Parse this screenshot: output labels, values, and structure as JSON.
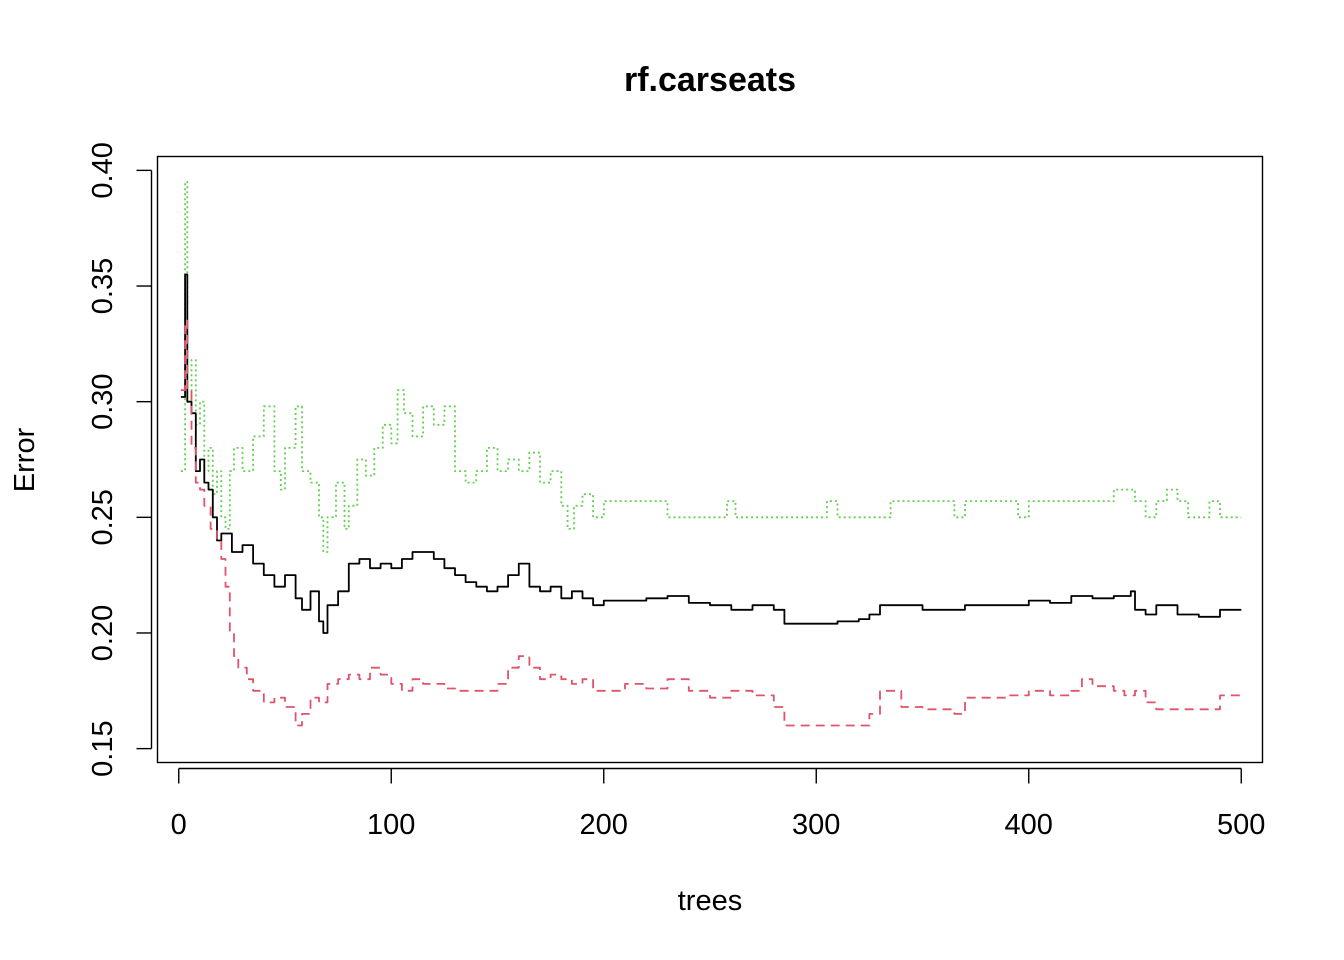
{
  "chart_data": {
    "type": "line",
    "title": "rf.carseats",
    "xlabel": "trees",
    "ylabel": "Error",
    "xlim": [
      -10,
      510
    ],
    "ylim": [
      0.144,
      0.406
    ],
    "x_ticks": [
      0,
      100,
      200,
      300,
      400,
      500
    ],
    "y_ticks": [
      0.15,
      0.2,
      0.25,
      0.3,
      0.35,
      0.4
    ],
    "x_tick_labels": [
      "0",
      "100",
      "200",
      "300",
      "400",
      "500"
    ],
    "y_tick_labels": [
      "0.15",
      "0.20",
      "0.25",
      "0.30",
      "0.35",
      "0.40"
    ],
    "legend": "none",
    "grid": false,
    "series": [
      {
        "line_style": "dotted",
        "color": "#61D04F",
        "points": [
          [
            1,
            0.27
          ],
          [
            3,
            0.395
          ],
          [
            4,
            0.3
          ],
          [
            6,
            0.318
          ],
          [
            8,
            0.29
          ],
          [
            10,
            0.3
          ],
          [
            12,
            0.27
          ],
          [
            14,
            0.28
          ],
          [
            16,
            0.26
          ],
          [
            18,
            0.27
          ],
          [
            20,
            0.25
          ],
          [
            22,
            0.245
          ],
          [
            24,
            0.27
          ],
          [
            26,
            0.28
          ],
          [
            30,
            0.27
          ],
          [
            35,
            0.285
          ],
          [
            40,
            0.298
          ],
          [
            45,
            0.27
          ],
          [
            48,
            0.262
          ],
          [
            50,
            0.28
          ],
          [
            55,
            0.298
          ],
          [
            58,
            0.27
          ],
          [
            62,
            0.265
          ],
          [
            66,
            0.25
          ],
          [
            68,
            0.235
          ],
          [
            70,
            0.25
          ],
          [
            74,
            0.265
          ],
          [
            78,
            0.245
          ],
          [
            80,
            0.255
          ],
          [
            84,
            0.275
          ],
          [
            88,
            0.268
          ],
          [
            92,
            0.28
          ],
          [
            96,
            0.29
          ],
          [
            100,
            0.282
          ],
          [
            103,
            0.305
          ],
          [
            106,
            0.295
          ],
          [
            110,
            0.285
          ],
          [
            115,
            0.298
          ],
          [
            120,
            0.29
          ],
          [
            125,
            0.298
          ],
          [
            130,
            0.27
          ],
          [
            135,
            0.265
          ],
          [
            140,
            0.27
          ],
          [
            145,
            0.28
          ],
          [
            150,
            0.27
          ],
          [
            155,
            0.275
          ],
          [
            160,
            0.27
          ],
          [
            165,
            0.278
          ],
          [
            170,
            0.265
          ],
          [
            175,
            0.27
          ],
          [
            180,
            0.255
          ],
          [
            183,
            0.245
          ],
          [
            186,
            0.255
          ],
          [
            190,
            0.26
          ],
          [
            195,
            0.25
          ],
          [
            200,
            0.257
          ],
          [
            220,
            0.257
          ],
          [
            230,
            0.25
          ],
          [
            255,
            0.25
          ],
          [
            258,
            0.257
          ],
          [
            262,
            0.25
          ],
          [
            300,
            0.25
          ],
          [
            305,
            0.257
          ],
          [
            310,
            0.25
          ],
          [
            330,
            0.25
          ],
          [
            335,
            0.257
          ],
          [
            340,
            0.257
          ],
          [
            360,
            0.257
          ],
          [
            365,
            0.25
          ],
          [
            370,
            0.257
          ],
          [
            390,
            0.257
          ],
          [
            395,
            0.25
          ],
          [
            400,
            0.257
          ],
          [
            435,
            0.257
          ],
          [
            440,
            0.262
          ],
          [
            445,
            0.262
          ],
          [
            450,
            0.257
          ],
          [
            455,
            0.25
          ],
          [
            460,
            0.257
          ],
          [
            465,
            0.262
          ],
          [
            470,
            0.257
          ],
          [
            475,
            0.25
          ],
          [
            480,
            0.25
          ],
          [
            485,
            0.257
          ],
          [
            490,
            0.25
          ],
          [
            500,
            0.25
          ]
        ]
      },
      {
        "line_style": "solid",
        "color": "#000000",
        "points": [
          [
            1,
            0.302
          ],
          [
            3,
            0.355
          ],
          [
            4,
            0.3
          ],
          [
            6,
            0.295
          ],
          [
            8,
            0.27
          ],
          [
            10,
            0.275
          ],
          [
            12,
            0.265
          ],
          [
            14,
            0.262
          ],
          [
            16,
            0.25
          ],
          [
            18,
            0.24
          ],
          [
            20,
            0.243
          ],
          [
            25,
            0.235
          ],
          [
            30,
            0.238
          ],
          [
            35,
            0.23
          ],
          [
            40,
            0.225
          ],
          [
            45,
            0.22
          ],
          [
            50,
            0.225
          ],
          [
            55,
            0.215
          ],
          [
            58,
            0.21
          ],
          [
            62,
            0.218
          ],
          [
            66,
            0.205
          ],
          [
            68,
            0.2
          ],
          [
            70,
            0.212
          ],
          [
            75,
            0.218
          ],
          [
            80,
            0.23
          ],
          [
            85,
            0.232
          ],
          [
            90,
            0.228
          ],
          [
            95,
            0.23
          ],
          [
            100,
            0.228
          ],
          [
            105,
            0.232
          ],
          [
            110,
            0.235
          ],
          [
            115,
            0.235
          ],
          [
            120,
            0.232
          ],
          [
            125,
            0.228
          ],
          [
            130,
            0.225
          ],
          [
            135,
            0.222
          ],
          [
            140,
            0.22
          ],
          [
            145,
            0.218
          ],
          [
            150,
            0.22
          ],
          [
            155,
            0.225
          ],
          [
            160,
            0.23
          ],
          [
            165,
            0.22
          ],
          [
            170,
            0.218
          ],
          [
            175,
            0.22
          ],
          [
            180,
            0.215
          ],
          [
            185,
            0.218
          ],
          [
            190,
            0.215
          ],
          [
            195,
            0.212
          ],
          [
            200,
            0.214
          ],
          [
            220,
            0.215
          ],
          [
            230,
            0.216
          ],
          [
            240,
            0.213
          ],
          [
            250,
            0.212
          ],
          [
            260,
            0.21
          ],
          [
            270,
            0.212
          ],
          [
            280,
            0.21
          ],
          [
            285,
            0.204
          ],
          [
            300,
            0.204
          ],
          [
            310,
            0.205
          ],
          [
            320,
            0.206
          ],
          [
            325,
            0.208
          ],
          [
            330,
            0.212
          ],
          [
            340,
            0.212
          ],
          [
            350,
            0.21
          ],
          [
            360,
            0.21
          ],
          [
            370,
            0.212
          ],
          [
            380,
            0.212
          ],
          [
            390,
            0.212
          ],
          [
            400,
            0.214
          ],
          [
            410,
            0.213
          ],
          [
            420,
            0.216
          ],
          [
            430,
            0.215
          ],
          [
            440,
            0.216
          ],
          [
            448,
            0.218
          ],
          [
            450,
            0.21
          ],
          [
            455,
            0.208
          ],
          [
            460,
            0.212
          ],
          [
            470,
            0.208
          ],
          [
            480,
            0.207
          ],
          [
            490,
            0.21
          ],
          [
            500,
            0.21
          ]
        ]
      },
      {
        "line_style": "dashed",
        "color": "#DF536B",
        "points": [
          [
            1,
            0.305
          ],
          [
            3,
            0.335
          ],
          [
            4,
            0.305
          ],
          [
            6,
            0.28
          ],
          [
            8,
            0.265
          ],
          [
            10,
            0.262
          ],
          [
            12,
            0.255
          ],
          [
            15,
            0.245
          ],
          [
            18,
            0.24
          ],
          [
            20,
            0.232
          ],
          [
            22,
            0.22
          ],
          [
            24,
            0.2
          ],
          [
            26,
            0.19
          ],
          [
            28,
            0.185
          ],
          [
            32,
            0.18
          ],
          [
            35,
            0.175
          ],
          [
            40,
            0.17
          ],
          [
            45,
            0.172
          ],
          [
            50,
            0.168
          ],
          [
            55,
            0.16
          ],
          [
            58,
            0.165
          ],
          [
            62,
            0.172
          ],
          [
            66,
            0.17
          ],
          [
            70,
            0.178
          ],
          [
            75,
            0.18
          ],
          [
            80,
            0.182
          ],
          [
            85,
            0.18
          ],
          [
            90,
            0.185
          ],
          [
            95,
            0.182
          ],
          [
            100,
            0.178
          ],
          [
            105,
            0.175
          ],
          [
            110,
            0.18
          ],
          [
            115,
            0.178
          ],
          [
            120,
            0.178
          ],
          [
            125,
            0.176
          ],
          [
            130,
            0.175
          ],
          [
            140,
            0.175
          ],
          [
            150,
            0.178
          ],
          [
            155,
            0.185
          ],
          [
            160,
            0.19
          ],
          [
            165,
            0.185
          ],
          [
            170,
            0.18
          ],
          [
            175,
            0.182
          ],
          [
            180,
            0.18
          ],
          [
            185,
            0.178
          ],
          [
            190,
            0.18
          ],
          [
            195,
            0.175
          ],
          [
            200,
            0.175
          ],
          [
            210,
            0.178
          ],
          [
            220,
            0.176
          ],
          [
            230,
            0.18
          ],
          [
            240,
            0.175
          ],
          [
            250,
            0.172
          ],
          [
            260,
            0.175
          ],
          [
            270,
            0.173
          ],
          [
            280,
            0.168
          ],
          [
            285,
            0.16
          ],
          [
            300,
            0.16
          ],
          [
            310,
            0.16
          ],
          [
            320,
            0.16
          ],
          [
            325,
            0.165
          ],
          [
            330,
            0.175
          ],
          [
            335,
            0.175
          ],
          [
            340,
            0.168
          ],
          [
            350,
            0.167
          ],
          [
            360,
            0.167
          ],
          [
            365,
            0.165
          ],
          [
            370,
            0.172
          ],
          [
            380,
            0.172
          ],
          [
            390,
            0.173
          ],
          [
            400,
            0.175
          ],
          [
            410,
            0.173
          ],
          [
            420,
            0.175
          ],
          [
            425,
            0.18
          ],
          [
            430,
            0.177
          ],
          [
            440,
            0.175
          ],
          [
            445,
            0.173
          ],
          [
            450,
            0.175
          ],
          [
            455,
            0.17
          ],
          [
            460,
            0.167
          ],
          [
            470,
            0.167
          ],
          [
            480,
            0.167
          ],
          [
            490,
            0.173
          ],
          [
            500,
            0.173
          ]
        ]
      }
    ]
  }
}
